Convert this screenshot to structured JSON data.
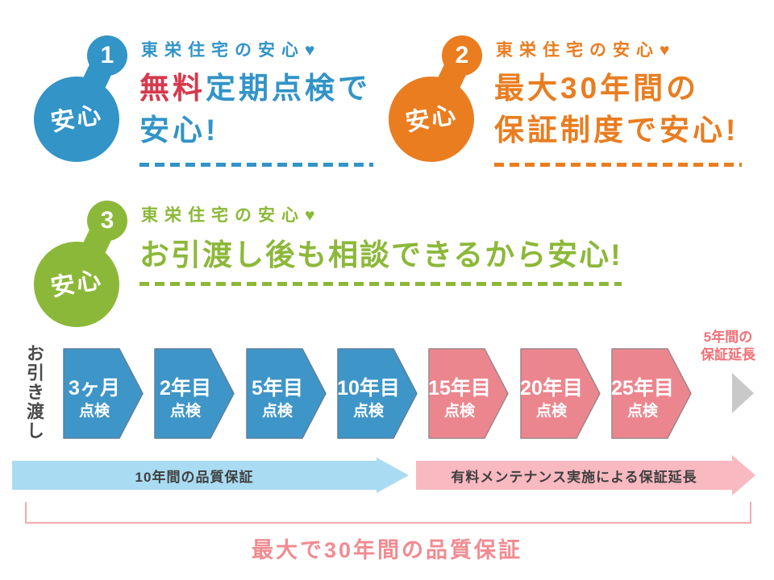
{
  "points": [
    {
      "number": "1",
      "badge_label": "安心",
      "header": "東栄住宅の安心♥",
      "title_accent": "無料",
      "title_line1_rest": "定期点検で",
      "title_line2": "安心!",
      "accent_color": "#3294c7",
      "accent_text_color": "#d6394d"
    },
    {
      "number": "2",
      "badge_label": "安心",
      "header": "東栄住宅の安心♥",
      "title_line1": "最大30年間の",
      "title_line2": "保証制度で安心!",
      "accent_color": "#e97d20"
    },
    {
      "number": "3",
      "badge_label": "安心",
      "header": "東栄住宅の安心♥",
      "title_line1": "お引渡し後も相談できるから安心!",
      "accent_color": "#8cb839"
    }
  ],
  "timeline": {
    "start_label": "お引き渡し",
    "steps": [
      {
        "line1": "3ヶ月",
        "line2": "点検",
        "phase": "free"
      },
      {
        "line1": "2年目",
        "line2": "点検",
        "phase": "free"
      },
      {
        "line1": "5年目",
        "line2": "点検",
        "phase": "free"
      },
      {
        "line1": "10年目",
        "line2": "点検",
        "phase": "free"
      },
      {
        "line1": "15年目",
        "line2": "点検",
        "phase": "paid"
      },
      {
        "line1": "20年目",
        "line2": "点検",
        "phase": "paid"
      },
      {
        "line1": "25年目",
        "line2": "点検",
        "phase": "paid"
      }
    ],
    "extension_note": {
      "line1": "5年間の",
      "line2": "保証延長"
    },
    "bars": [
      {
        "label": "10年間の品質保証",
        "color": "#a9dbf2"
      },
      {
        "label": "有料メンテナンス実施による保証延長",
        "color": "#f9b9c0"
      }
    ],
    "caption": "最大で30年間の品質保証",
    "colors": {
      "step_free_fill": "#3e95c8",
      "step_free_stroke": "#60809a",
      "step_paid_fill": "#ec868e",
      "step_paid_stroke": "#9c878b",
      "continue_arrow": "#c9c9c9",
      "bracket": "#f6a8af",
      "caption_text": "#f18b91",
      "extension_text": "#ef7077"
    }
  }
}
